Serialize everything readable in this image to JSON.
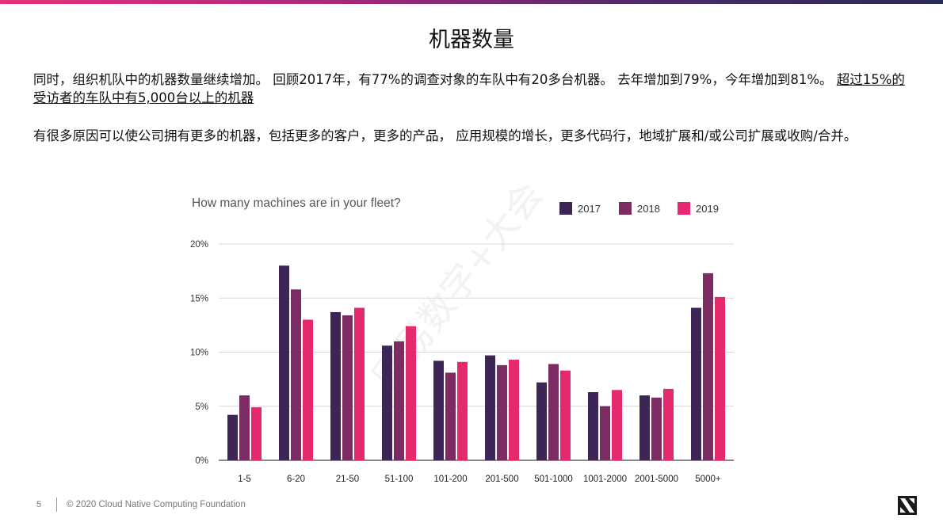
{
  "slide": {
    "title": "机器数量",
    "paragraph1": "同时，组织机队中的机器数量继续增加。 回顾2017年，有77%的调查对象的车队中有20多台机器。 去年增加到79%，今年增加到81%。",
    "paragraph1_underlined": "超过15%的受访者的车队中有5,000台以上的机器",
    "paragraph2": "有很多原因可以使公司拥有更多的机器，包括更多的客户，更多的产品， 应用规模的增长，更多代码行，地域扩展和/或公司扩展或收购/合并。",
    "page_number": "5",
    "copyright": "© 2020 Cloud Native Computing Foundation",
    "logo_icon": "cncf-logo-icon",
    "watermark": "网易数字+大会"
  },
  "chart_data": {
    "type": "bar",
    "title": "How many machines are in your fleet?",
    "categories": [
      "1-5",
      "6-20",
      "21-50",
      "51-100",
      "101-200",
      "201-500",
      "501-1000",
      "1001-2000",
      "2001-5000",
      "5000+"
    ],
    "series": [
      {
        "name": "2017",
        "color": "#3d2556",
        "values": [
          4.2,
          18.0,
          13.7,
          10.6,
          9.2,
          9.7,
          7.2,
          6.3,
          6.0,
          14.1
        ]
      },
      {
        "name": "2018",
        "color": "#7b2d63",
        "values": [
          6.0,
          15.8,
          13.4,
          11.0,
          8.1,
          8.8,
          8.9,
          5.0,
          5.8,
          17.3
        ]
      },
      {
        "name": "2019",
        "color": "#e5296f",
        "values": [
          4.9,
          13.0,
          14.1,
          12.4,
          9.1,
          9.3,
          8.3,
          6.5,
          6.6,
          15.1
        ]
      }
    ],
    "yticks": [
      "0%",
      "5%",
      "10%",
      "15%",
      "20%"
    ],
    "ylim": [
      0,
      20
    ],
    "grid": true,
    "legend": "top-right",
    "xlabel": "",
    "ylabel": ""
  }
}
